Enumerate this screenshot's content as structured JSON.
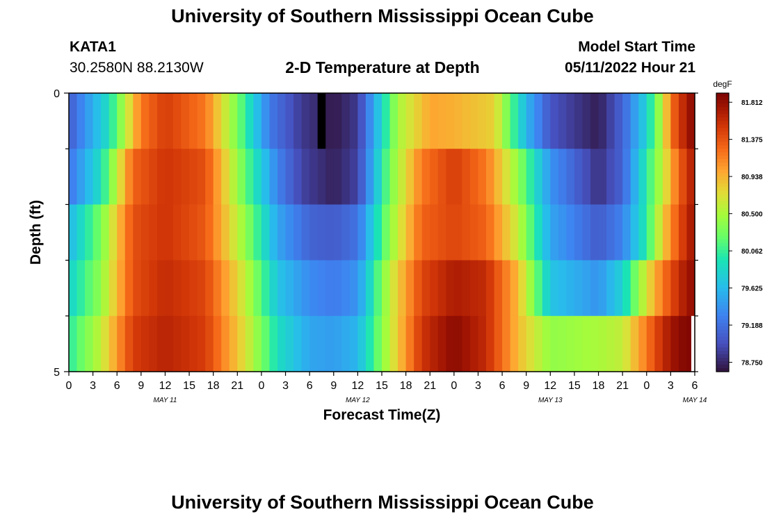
{
  "header": {
    "title": "University of Southern Mississippi Ocean Cube",
    "station": "KATA1",
    "coordinates": "30.2580N  88.2130W",
    "subtitle": "2-D Temperature at Depth",
    "model_start_label": "Model Start Time",
    "model_start_value": "05/11/2022 Hour 21"
  },
  "footer": {
    "title": "University of Southern Mississippi Ocean Cube"
  },
  "colors": {
    "low": "#30123b",
    "mid": "#a4fc3c",
    "high": "#7a0403",
    "missing": "#000000"
  },
  "chart_data": {
    "type": "heatmap",
    "title": "2-D Temperature at Depth",
    "xlabel": "Forecast Time(Z)",
    "ylabel": "Depth (ft)",
    "x_ticks": [
      "0",
      "3",
      "6",
      "9",
      "12",
      "15",
      "18",
      "21",
      "0",
      "3",
      "6",
      "9",
      "12",
      "15",
      "18",
      "21",
      "0",
      "3",
      "6",
      "9",
      "12",
      "15",
      "18",
      "21",
      "0",
      "3",
      "6"
    ],
    "date_labels": [
      {
        "label": "MAY 11",
        "hour": 12
      },
      {
        "label": "MAY 12",
        "hour": 36
      },
      {
        "label": "MAY 13",
        "hour": 60
      },
      {
        "label": "MAY 14",
        "hour": 78
      }
    ],
    "xlim_hours": [
      0,
      78
    ],
    "y_ticks": [
      "0",
      "5"
    ],
    "ylim": [
      0,
      5
    ],
    "depth_rows": 5,
    "colorbar": {
      "unit": "degF",
      "min": 78.64,
      "max": 81.92,
      "tick_labels": [
        "81.812",
        "81.375",
        "80.938",
        "80.500",
        "80.062",
        "79.625",
        "79.188",
        "78.750"
      ]
    },
    "series": [
      {
        "name": "depth_row_1_surface",
        "hours": [
          0,
          5,
          9,
          12,
          17,
          21,
          25,
          29,
          33,
          36,
          41,
          45,
          48,
          53,
          57,
          60,
          66,
          69,
          72,
          74,
          75,
          76,
          78
        ],
        "values": [
          79.05,
          79.9,
          81.2,
          81.5,
          81.2,
          80.3,
          79.25,
          78.85,
          78.68,
          78.85,
          80.5,
          81.0,
          80.95,
          80.8,
          79.6,
          79.0,
          78.7,
          79.1,
          79.8,
          80.6,
          81.2,
          81.5,
          81.9
        ]
      },
      {
        "name": "depth_row_2",
        "hours": [
          0,
          4,
          8,
          12,
          17,
          22,
          26,
          29,
          33,
          36,
          40,
          44,
          48,
          52,
          56,
          60,
          66,
          69,
          72,
          74,
          76,
          78
        ],
        "values": [
          79.2,
          79.9,
          81.3,
          81.55,
          81.4,
          80.2,
          79.3,
          78.9,
          78.72,
          78.9,
          80.3,
          81.2,
          81.5,
          81.2,
          80.4,
          79.4,
          78.8,
          79.1,
          80.0,
          80.6,
          81.3,
          81.75
        ]
      },
      {
        "name": "depth_row_3",
        "hours": [
          0,
          4,
          8,
          12,
          17,
          22,
          26,
          30,
          33,
          36,
          40,
          44,
          48,
          52,
          56,
          60,
          66,
          69,
          72,
          74,
          76,
          78
        ],
        "values": [
          79.6,
          80.3,
          81.4,
          81.55,
          81.35,
          80.4,
          79.5,
          79.1,
          79.05,
          79.2,
          80.4,
          81.3,
          81.45,
          81.3,
          80.6,
          79.5,
          79.05,
          79.3,
          80.0,
          80.8,
          81.4,
          81.8
        ]
      },
      {
        "name": "depth_row_4",
        "hours": [
          0,
          4,
          8,
          12,
          17,
          22,
          26,
          30,
          33,
          36,
          40,
          44,
          48,
          52,
          56,
          60,
          66,
          69,
          72,
          74,
          76,
          78
        ],
        "values": [
          79.8,
          80.4,
          81.4,
          81.6,
          81.45,
          80.6,
          79.7,
          79.35,
          79.25,
          79.4,
          80.6,
          81.45,
          81.7,
          81.6,
          80.9,
          79.7,
          79.4,
          79.8,
          80.7,
          81.2,
          81.6,
          81.85
        ]
      },
      {
        "name": "depth_row_5_bottom",
        "hours": [
          0,
          4,
          8,
          12,
          17,
          22,
          26,
          30,
          33,
          36,
          40,
          44,
          48,
          52,
          56,
          60,
          66,
          69,
          72,
          74,
          76,
          78
        ],
        "values": [
          80.0,
          80.6,
          81.5,
          81.65,
          81.5,
          80.7,
          79.9,
          79.5,
          79.45,
          79.6,
          80.6,
          81.55,
          81.85,
          81.6,
          80.9,
          80.4,
          80.5,
          80.6,
          81.2,
          81.6,
          81.85,
          81.9
        ]
      }
    ],
    "missing_cells": [
      {
        "row": 1,
        "hour": 31
      },
      {
        "row": 5,
        "hour": 78
      }
    ]
  }
}
